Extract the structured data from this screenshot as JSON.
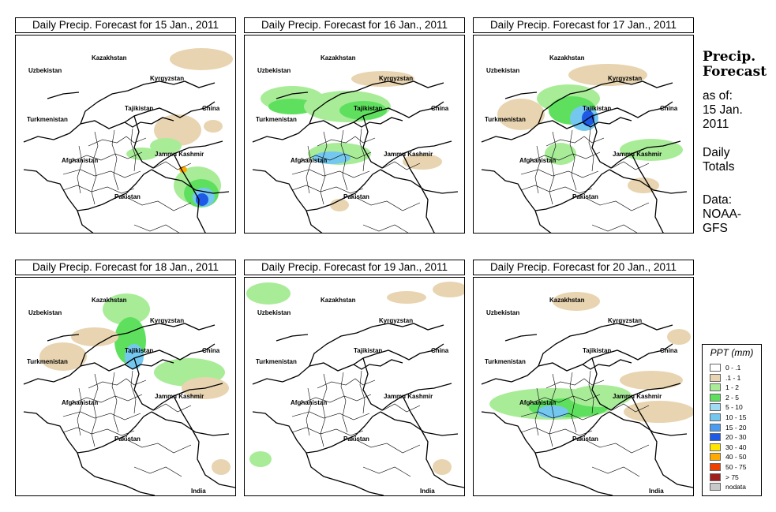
{
  "panels": [
    {
      "title": "Daily Precip. Forecast for  15 Jan., 2011"
    },
    {
      "title": "Daily Precip. Forecast for  16 Jan., 2011"
    },
    {
      "title": "Daily Precip. Forecast for  17 Jan., 2011"
    },
    {
      "title": "Daily Precip. Forecast for  18 Jan., 2011"
    },
    {
      "title": "Daily Precip. Forecast for  19 Jan., 2011"
    },
    {
      "title": "Daily Precip. Forecast for  20 Jan., 2011"
    }
  ],
  "map_labels": {
    "kazakhstan": "Kazakhstan",
    "uzbekistan": "Uzbekistan",
    "kyrgyzstan": "Kyrgyzstan",
    "tajikistan": "Tajikistan",
    "china": "China",
    "turkmenistan": "Turkmenistan",
    "jammu_kashmir": "Jammu Kashmir",
    "afghanistan": "Afghanistan",
    "pakistan": "Pakistan",
    "india": "India"
  },
  "sidebar": {
    "heading_1": "Precip.",
    "heading_2": "Forecast",
    "as_of": "as of:",
    "date_1": "15 Jan.",
    "date_2": "2011",
    "daily": "Daily",
    "totals": "Totals",
    "data_label": "Data:",
    "data_source_1": "NOAA-",
    "data_source_2": "GFS"
  },
  "legend": {
    "title": "PPT (mm)",
    "items": [
      {
        "label": "0 - .1",
        "color": "#ffffff"
      },
      {
        "label": ".1 - 1",
        "color": "#e8d4b0"
      },
      {
        "label": "1 - 2",
        "color": "#a8ec98"
      },
      {
        "label": "2 - 5",
        "color": "#5ee05e"
      },
      {
        "label": "5 - 10",
        "color": "#a0dcf4"
      },
      {
        "label": "10 - 15",
        "color": "#74c8f0"
      },
      {
        "label": "15 - 20",
        "color": "#4a9cf0"
      },
      {
        "label": "20 - 30",
        "color": "#1e5ae6"
      },
      {
        "label": "30 - 40",
        "color": "#ffe600"
      },
      {
        "label": "40 - 50",
        "color": "#ffaa00"
      },
      {
        "label": "50 - 75",
        "color": "#f04000"
      },
      {
        "label": "> 75",
        "color": "#a02020"
      },
      {
        "label": "nodata",
        "color": "#c8c8c8"
      }
    ]
  }
}
